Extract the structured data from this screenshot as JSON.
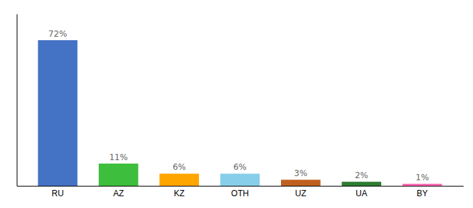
{
  "chart_data": {
    "type": "bar",
    "categories": [
      "RU",
      "AZ",
      "KZ",
      "OTH",
      "UZ",
      "UA",
      "BY"
    ],
    "values": [
      72,
      11,
      6,
      6,
      3,
      2,
      1
    ],
    "value_labels": [
      "72%",
      "11%",
      "6%",
      "6%",
      "3%",
      "2%",
      "1%"
    ],
    "colors": [
      "#4472C4",
      "#3DBE3D",
      "#FFA500",
      "#87CEEB",
      "#C06020",
      "#2E7D32",
      "#FF69B4"
    ],
    "ylim": [
      0,
      85
    ],
    "yticks": [],
    "data_labels": true,
    "tick_labels": "x",
    "grid": false
  }
}
